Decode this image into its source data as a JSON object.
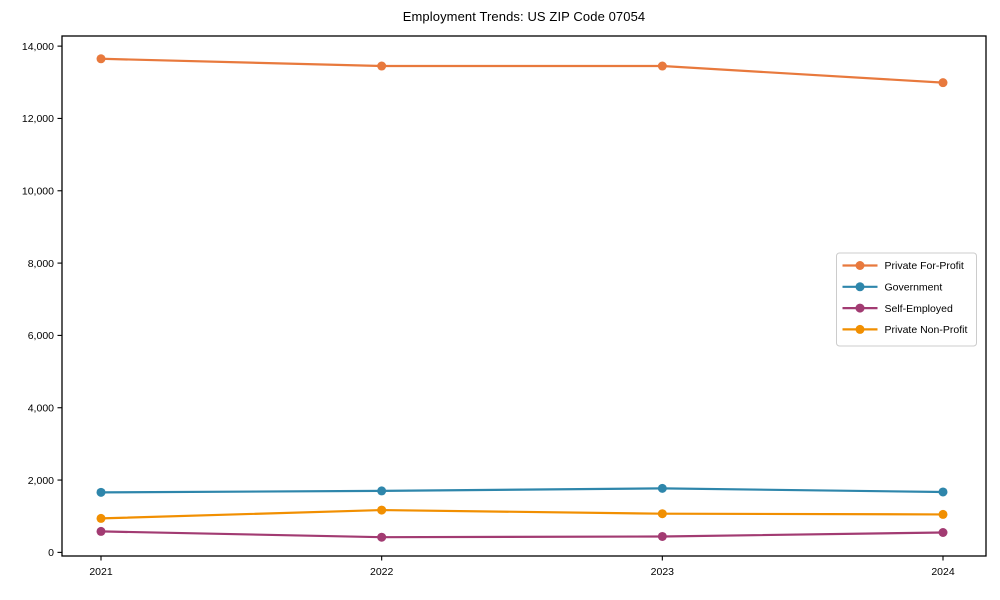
{
  "chart_data": {
    "type": "line",
    "title": "Employment Trends: US ZIP Code 07054",
    "categories": [
      2021,
      2022,
      2023,
      2024
    ],
    "xtick_labels": [
      "2021",
      "2022",
      "2023",
      "2024"
    ],
    "series": [
      {
        "name": "Private For-Profit",
        "color": "#e8793d",
        "values": [
          13650,
          13450,
          13450,
          12990
        ]
      },
      {
        "name": "Government",
        "color": "#2e86ab",
        "values": [
          1660,
          1700,
          1770,
          1670
        ]
      },
      {
        "name": "Self-Employed",
        "color": "#a23b72",
        "values": [
          580,
          420,
          440,
          550
        ]
      },
      {
        "name": "Private Non-Profit",
        "color": "#f18f01",
        "values": [
          940,
          1170,
          1070,
          1050
        ]
      }
    ],
    "xlabel": "",
    "ylabel": "",
    "yticks": [
      0,
      2000,
      4000,
      6000,
      8000,
      10000,
      12000,
      14000
    ],
    "ytick_labels": [
      "0",
      "2,000",
      "4,000",
      "6,000",
      "8,000",
      "10,000",
      "12,000",
      "14,000"
    ],
    "ylim": [
      -100,
      14280
    ],
    "grid": false,
    "legend": {
      "position": "center-right",
      "border_color": "#cccccc",
      "background": "#ffffff"
    },
    "marker": "circle",
    "axis_color": "#000000",
    "background": "#ffffff"
  }
}
